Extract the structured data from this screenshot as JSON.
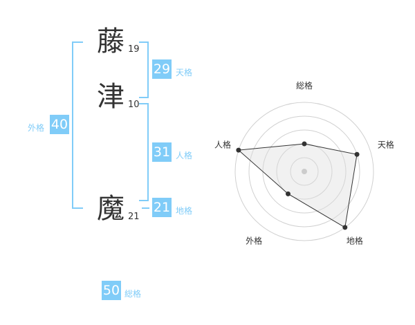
{
  "name": [
    {
      "char": "藤",
      "strokes": "19"
    },
    {
      "char": "津",
      "strokes": "10"
    },
    {
      "char": "魔",
      "strokes": "21"
    }
  ],
  "fortunes": {
    "tenkaku": {
      "value": "29",
      "label": "天格"
    },
    "jinkaku": {
      "value": "31",
      "label": "人格"
    },
    "chikaku": {
      "value": "21",
      "label": "地格"
    },
    "gaikaku": {
      "value": "40",
      "label": "外格"
    },
    "soukaku": {
      "value": "50",
      "label": "総格"
    }
  },
  "colors": {
    "accent": "#80ccf8",
    "text": "#333333"
  },
  "chart_data": {
    "type": "radar",
    "axes": [
      "総格",
      "天格",
      "地格",
      "外格",
      "人格"
    ],
    "values": [
      2,
      4,
      5,
      2,
      5
    ],
    "range": [
      0,
      5
    ],
    "rings": 5
  }
}
